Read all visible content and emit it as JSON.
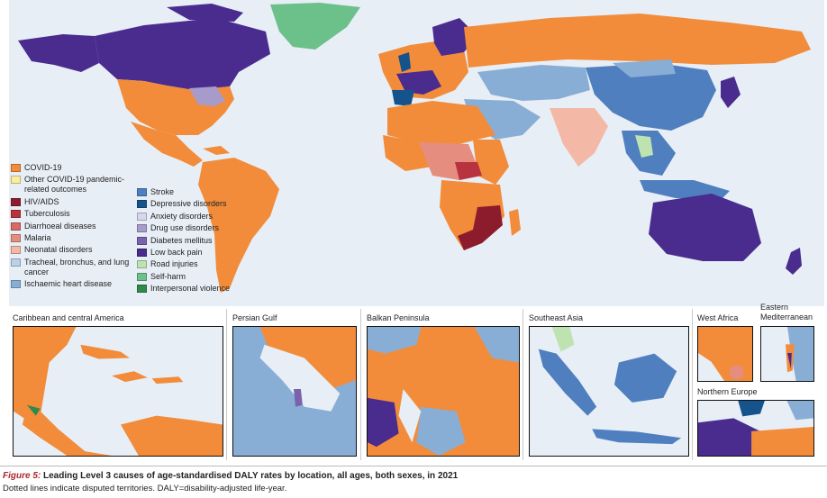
{
  "legend": {
    "items": [
      {
        "label": "COVID-19",
        "color": "#f28c3a"
      },
      {
        "label": "Other COVID-19 pandemic-related outcomes",
        "color": "#fbeea0"
      },
      {
        "label": "HIV/AIDS",
        "color": "#8c1c2c"
      },
      {
        "label": "Tuberculosis",
        "color": "#b8333f"
      },
      {
        "label": "Diarrhoeal diseases",
        "color": "#d86a66"
      },
      {
        "label": "Malaria",
        "color": "#e58e80"
      },
      {
        "label": "Neonatal disorders",
        "color": "#f4b9a6"
      },
      {
        "label": "Tracheal, bronchus, and lung cancer",
        "color": "#bcd1e8"
      },
      {
        "label": "Ischaemic heart disease",
        "color": "#89aed6"
      },
      {
        "label": "Stroke",
        "color": "#4f7fbf"
      },
      {
        "label": "Depressive disorders",
        "color": "#15538c"
      },
      {
        "label": "Anxiety disorders",
        "color": "#d7d7ea"
      },
      {
        "label": "Drug use disorders",
        "color": "#a79bcb"
      },
      {
        "label": "Diabetes mellitus",
        "color": "#7b62ad"
      },
      {
        "label": "Low back pain",
        "color": "#4a2b8e"
      },
      {
        "label": "Road injuries",
        "color": "#bfe3b0"
      },
      {
        "label": "Self-harm",
        "color": "#6cc08a"
      },
      {
        "label": "Interpersonal violence",
        "color": "#2f8a4b"
      }
    ]
  },
  "insets": {
    "caribbean": "Caribbean and central America",
    "persian_gulf": "Persian Gulf",
    "balkan": "Balkan Peninsula",
    "southeast_asia": "Southeast Asia",
    "west_africa": "West Africa",
    "eastern_med": "Eastern Mediterranean",
    "northern_europe": "Northern Europe"
  },
  "caption": {
    "figure_label": "Figure 5:",
    "title": " Leading Level 3 causes of age-standardised DALY rates by location, all ages, both sexes, in 2021",
    "note": "Dotted lines indicate disputed territories. DALY=disability-adjusted life-year."
  }
}
